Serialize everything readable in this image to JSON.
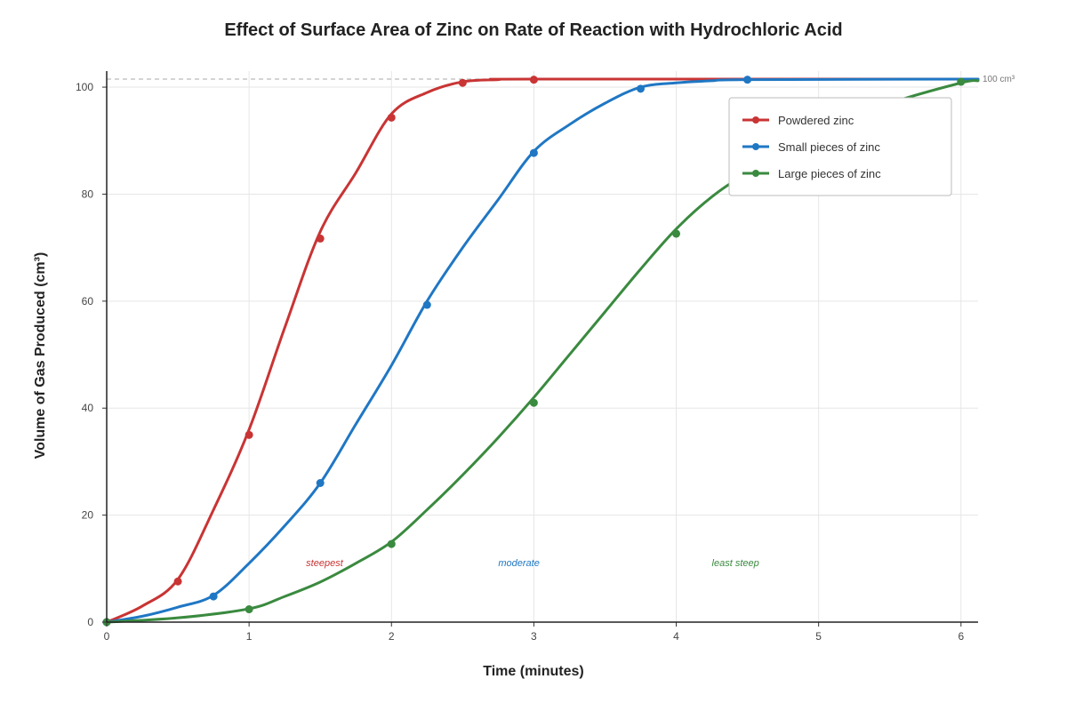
{
  "chart_data": {
    "type": "line",
    "title": "Effect of Surface Area of Zinc on Rate of Reaction with Hydrochloric Acid",
    "xlabel": "Time (minutes)",
    "ylabel": "Volume of Gas Produced (cm³)",
    "xlim": [
      0,
      6.12
    ],
    "ylim": [
      0,
      103
    ],
    "x_ticks": [
      0,
      1,
      2,
      3,
      4,
      5,
      6
    ],
    "y_ticks": [
      0,
      20,
      40,
      60,
      80,
      100
    ],
    "grid": true,
    "legend_position": "top-right",
    "reference_line": {
      "y": 101.5,
      "label": "100 cm³",
      "color": "#bbbbbb"
    },
    "series": [
      {
        "name": "Powdered zinc",
        "color": "#c93434",
        "curve": [
          [
            0,
            0
          ],
          [
            0.25,
            3
          ],
          [
            0.5,
            8
          ],
          [
            0.75,
            21
          ],
          [
            1,
            36
          ],
          [
            1.25,
            55
          ],
          [
            1.5,
            73
          ],
          [
            1.75,
            84
          ],
          [
            2,
            95
          ],
          [
            2.25,
            99
          ],
          [
            2.5,
            101
          ],
          [
            2.75,
            101.4
          ],
          [
            3,
            101.5
          ],
          [
            6.12,
            101.5
          ]
        ],
        "points": [
          [
            0,
            0
          ],
          [
            0.5,
            7.6
          ],
          [
            1,
            35
          ],
          [
            1.5,
            71.7
          ],
          [
            2,
            94.3
          ],
          [
            2.5,
            100.8
          ],
          [
            3,
            101.4
          ]
        ]
      },
      {
        "name": "Small pieces of zinc",
        "color": "#1f77c4",
        "curve": [
          [
            0,
            0
          ],
          [
            0.25,
            1.1
          ],
          [
            0.5,
            2.8
          ],
          [
            0.75,
            5
          ],
          [
            1,
            11
          ],
          [
            1.25,
            18
          ],
          [
            1.5,
            26
          ],
          [
            1.75,
            37
          ],
          [
            2,
            48
          ],
          [
            2.25,
            60
          ],
          [
            2.5,
            70
          ],
          [
            2.75,
            79
          ],
          [
            3,
            88
          ],
          [
            3.25,
            93
          ],
          [
            3.5,
            97
          ],
          [
            3.75,
            100
          ],
          [
            4,
            100.8
          ],
          [
            4.25,
            101.2
          ],
          [
            4.5,
            101.4
          ],
          [
            6.12,
            101.5
          ]
        ],
        "points": [
          [
            0,
            0
          ],
          [
            0.75,
            4.8
          ],
          [
            1.5,
            26
          ],
          [
            2.25,
            59.3
          ],
          [
            3,
            87.7
          ],
          [
            3.75,
            99.7
          ],
          [
            4.5,
            101.4
          ]
        ]
      },
      {
        "name": "Large pieces of zinc",
        "color": "#3a8a3f",
        "curve": [
          [
            0,
            0
          ],
          [
            0.5,
            0.8
          ],
          [
            1,
            2.5
          ],
          [
            1.25,
            4.8
          ],
          [
            1.5,
            7.5
          ],
          [
            1.75,
            11
          ],
          [
            2,
            15
          ],
          [
            2.25,
            21
          ],
          [
            2.5,
            27.5
          ],
          [
            2.75,
            34.5
          ],
          [
            3,
            42
          ],
          [
            3.25,
            50
          ],
          [
            3.5,
            58
          ],
          [
            3.75,
            66
          ],
          [
            4,
            73.5
          ],
          [
            4.25,
            79.5
          ],
          [
            4.5,
            84
          ],
          [
            5,
            92
          ],
          [
            5.5,
            97
          ],
          [
            6,
            100.8
          ],
          [
            6.12,
            101.2
          ]
        ],
        "points": [
          [
            0,
            0
          ],
          [
            1,
            2.4
          ],
          [
            2,
            14.6
          ],
          [
            3,
            41
          ],
          [
            4,
            72.6
          ],
          [
            5,
            92
          ],
          [
            6,
            101
          ]
        ]
      }
    ],
    "annotations": [
      {
        "text": "steepest",
        "x": 1.4,
        "y": 10.5,
        "series": 0
      },
      {
        "text": "moderate",
        "x": 2.75,
        "y": 10.5,
        "series": 1
      },
      {
        "text": "least steep",
        "x": 4.25,
        "y": 10.5,
        "series": 2
      }
    ]
  }
}
